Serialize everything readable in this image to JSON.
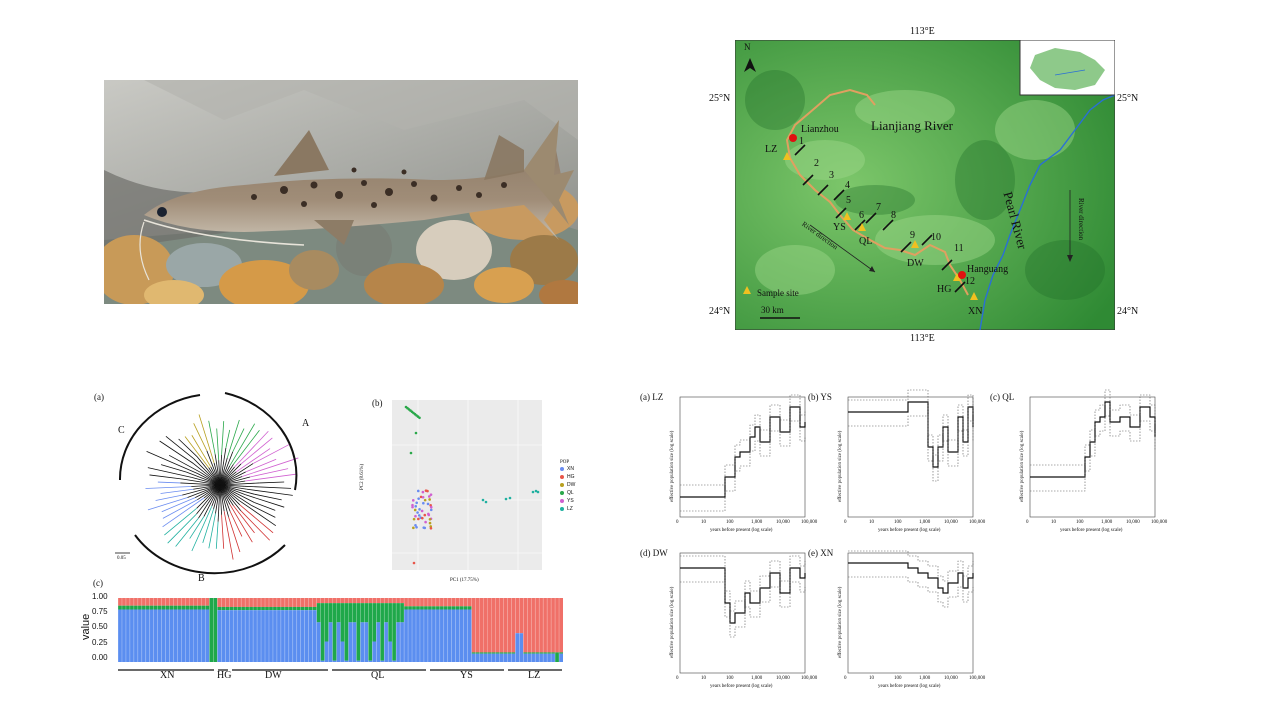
{
  "map": {
    "lon_top": "113°E",
    "lon_bottom": "113°E",
    "lat_25_left": "25°N",
    "lat_25_right": "25°N",
    "lat_24_left": "24°N",
    "lat_24_right": "24°N",
    "north": "N",
    "river_lianjiang": "Lianjiang River",
    "river_pearl": "Pearl River",
    "river_direction_1": "River direction",
    "river_direction_2": "River direction",
    "city_lianzhou": "Lianzhou",
    "city_hanguang": "Hanguang",
    "legend_sample": "Sample site",
    "scale": "30 km",
    "sites": [
      "LZ",
      "YS",
      "QL",
      "DW",
      "HG",
      "XN"
    ],
    "sections": [
      "1",
      "2",
      "3",
      "4",
      "5",
      "6",
      "7",
      "8",
      "9",
      "10",
      "11",
      "12"
    ],
    "colors": {
      "green": "#3f9a3c",
      "river_trib": "#d99a58",
      "pearl": "#2a6fd6",
      "site": "#f0c020",
      "city": "#e01010"
    }
  },
  "tree": {
    "label": "(a)",
    "clades": [
      "A",
      "B",
      "C"
    ],
    "scale": "0.05"
  },
  "pca": {
    "label": "(b)",
    "xlabel": "PC1 (17.75%)",
    "ylabel": "PC2 (8.61%)",
    "legend_title": "POP",
    "legend": [
      "XN",
      "HG",
      "DW",
      "QL",
      "YS",
      "LZ"
    ],
    "colors": [
      "#6a8cf0",
      "#e8564a",
      "#b8a020",
      "#2aa84a",
      "#d060d0",
      "#20b0a0"
    ]
  },
  "structure": {
    "label": "(c)",
    "ylabel": "value",
    "yticks": [
      "1.00",
      "0.75",
      "0.50",
      "0.25",
      "0.00"
    ],
    "groups": [
      "XN",
      "HG",
      "DW",
      "QL",
      "YS",
      "LZ"
    ],
    "colors": {
      "blue": "#5b8ef0",
      "green": "#1fa84a",
      "red": "#f07068"
    }
  },
  "skyline": {
    "xlabel": "years before present (log scale)",
    "ylabel": "effective population size (log scale)",
    "xticks": [
      "0",
      "10",
      "100",
      "1,000",
      "10,000",
      "100,000"
    ],
    "panels": [
      {
        "label": "(a) LZ"
      },
      {
        "label": "(b) YS"
      },
      {
        "label": "(c) QL"
      },
      {
        "label": "(d) DW"
      },
      {
        "label": "(e) XN"
      }
    ]
  }
}
